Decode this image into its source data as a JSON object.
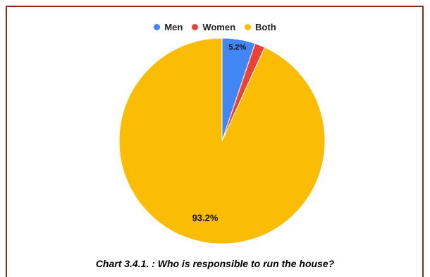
{
  "chart_data": {
    "type": "pie",
    "categories": [
      "Men",
      "Women",
      "Both"
    ],
    "values": [
      5.2,
      1.6,
      93.2
    ],
    "labels": [
      "5.2%",
      "",
      "93.2%"
    ],
    "colors": [
      "#4285F4",
      "#EA4335",
      "#FBBC04"
    ],
    "legend_position": "top",
    "title": "Chart 3.4.1. : Who is responsible to run the house?"
  }
}
